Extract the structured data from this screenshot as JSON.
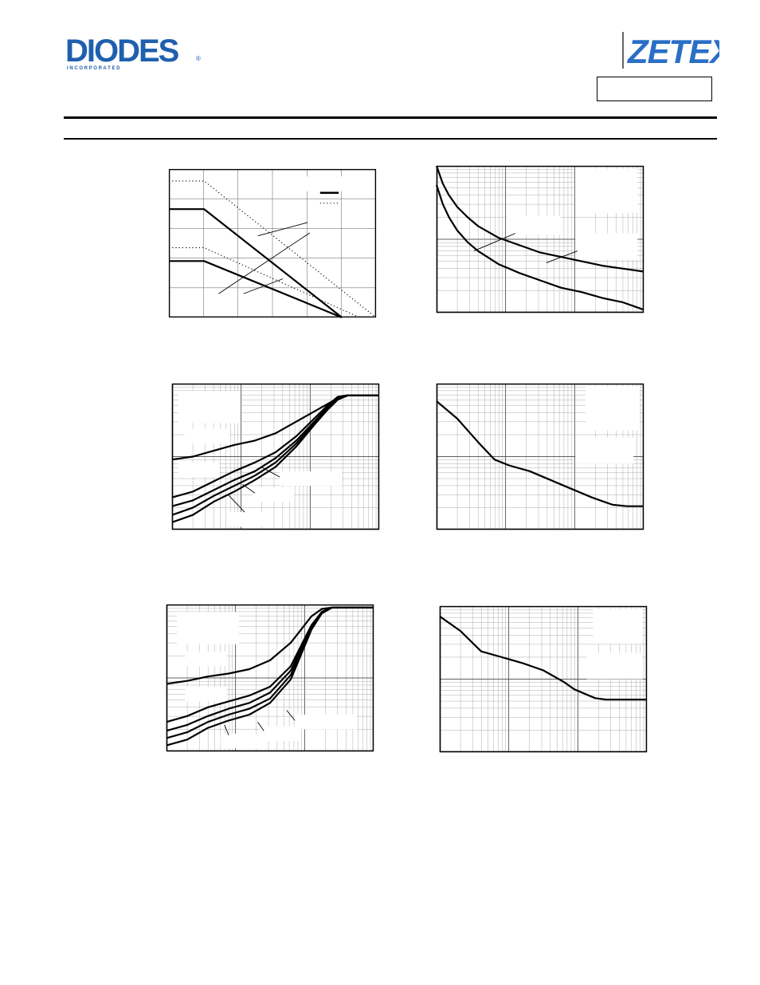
{
  "header": {
    "left_logo": {
      "name": "diodes-logo",
      "wordmark": "DIODES",
      "tagline": "I N C O R P O R A T E D",
      "registered": "®",
      "color": "#1f5fae"
    },
    "right_logo": {
      "name": "zetex-logo",
      "wordmark": "ZETEX",
      "color": "#2a6fc6"
    },
    "part_number_box": ""
  },
  "charts": [
    {
      "id": "chart-1",
      "type": "line",
      "grid": "linear",
      "legend_placement": "top-right",
      "series": [
        {
          "style": "dotted",
          "x": [
            0,
            0.17,
            1.0
          ],
          "y": [
            0.92,
            0.92,
            0.0
          ]
        },
        {
          "style": "solid",
          "x": [
            0,
            0.17,
            0.835
          ],
          "y": [
            0.73,
            0.73,
            0.0
          ]
        },
        {
          "style": "dotted",
          "x": [
            0,
            0.17,
            0.92
          ],
          "y": [
            0.47,
            0.47,
            0.0
          ]
        },
        {
          "style": "solid",
          "x": [
            0,
            0.17,
            0.835
          ],
          "y": [
            0.38,
            0.38,
            0.0
          ]
        }
      ]
    },
    {
      "id": "chart-2",
      "type": "line",
      "grid": "log",
      "series": [
        {
          "style": "solid",
          "x": [
            0.0,
            0.03,
            0.06,
            0.1,
            0.15,
            0.2,
            0.3,
            0.4,
            0.5,
            0.6,
            0.7,
            0.8,
            0.9,
            1.0
          ],
          "y": [
            1.0,
            0.88,
            0.8,
            0.72,
            0.65,
            0.59,
            0.51,
            0.46,
            0.41,
            0.38,
            0.35,
            0.32,
            0.3,
            0.28
          ]
        },
        {
          "style": "solid",
          "x": [
            0.0,
            0.03,
            0.06,
            0.1,
            0.15,
            0.2,
            0.3,
            0.4,
            0.5,
            0.6,
            0.7,
            0.8,
            0.9,
            1.0
          ],
          "y": [
            0.87,
            0.74,
            0.65,
            0.56,
            0.48,
            0.42,
            0.33,
            0.27,
            0.22,
            0.17,
            0.14,
            0.1,
            0.07,
            0.02
          ]
        }
      ]
    },
    {
      "id": "chart-3",
      "type": "line",
      "grid": "log",
      "series": [
        {
          "style": "solid",
          "x": [
            0,
            0.1,
            0.2,
            0.3,
            0.4,
            0.5,
            0.6,
            0.7,
            0.75,
            0.8,
            0.85,
            1.0
          ],
          "y": [
            0.48,
            0.5,
            0.54,
            0.58,
            0.61,
            0.66,
            0.74,
            0.82,
            0.86,
            0.9,
            0.92,
            0.92
          ]
        },
        {
          "style": "solid",
          "x": [
            0,
            0.1,
            0.2,
            0.3,
            0.4,
            0.5,
            0.6,
            0.7,
            0.75,
            0.8,
            0.85,
            1.0
          ],
          "y": [
            0.22,
            0.26,
            0.33,
            0.4,
            0.46,
            0.53,
            0.64,
            0.78,
            0.85,
            0.91,
            0.92,
            0.92
          ]
        },
        {
          "style": "solid",
          "x": [
            0,
            0.1,
            0.2,
            0.3,
            0.4,
            0.5,
            0.6,
            0.7,
            0.75,
            0.8,
            0.85,
            1.0
          ],
          "y": [
            0.16,
            0.2,
            0.27,
            0.34,
            0.4,
            0.49,
            0.61,
            0.76,
            0.84,
            0.9,
            0.92,
            0.92
          ]
        },
        {
          "style": "solid",
          "x": [
            0,
            0.1,
            0.2,
            0.3,
            0.4,
            0.5,
            0.6,
            0.7,
            0.75,
            0.8,
            0.85,
            1.0
          ],
          "y": [
            0.1,
            0.15,
            0.23,
            0.3,
            0.37,
            0.46,
            0.59,
            0.75,
            0.83,
            0.9,
            0.92,
            0.92
          ]
        },
        {
          "style": "solid",
          "x": [
            0,
            0.1,
            0.2,
            0.3,
            0.4,
            0.5,
            0.6,
            0.7,
            0.75,
            0.8,
            0.85,
            1.0
          ],
          "y": [
            0.05,
            0.1,
            0.19,
            0.26,
            0.34,
            0.43,
            0.57,
            0.74,
            0.82,
            0.89,
            0.92,
            0.92
          ]
        }
      ]
    },
    {
      "id": "chart-4",
      "type": "line",
      "grid": "log",
      "series": [
        {
          "style": "solid",
          "x": [
            0,
            0.1,
            0.2,
            0.28,
            0.35,
            0.45,
            0.55,
            0.65,
            0.75,
            0.85,
            0.92,
            1.0
          ],
          "y": [
            0.88,
            0.76,
            0.6,
            0.48,
            0.44,
            0.4,
            0.34,
            0.28,
            0.22,
            0.17,
            0.16,
            0.16
          ]
        }
      ]
    },
    {
      "id": "chart-5",
      "type": "line",
      "grid": "log",
      "series": [
        {
          "style": "solid",
          "x": [
            0,
            0.1,
            0.2,
            0.3,
            0.4,
            0.5,
            0.6,
            0.65,
            0.7,
            0.75,
            0.8,
            0.85,
            1.0
          ],
          "y": [
            0.46,
            0.48,
            0.51,
            0.53,
            0.56,
            0.62,
            0.74,
            0.83,
            0.92,
            0.97,
            0.98,
            0.98,
            0.98
          ]
        },
        {
          "style": "solid",
          "x": [
            0,
            0.1,
            0.2,
            0.3,
            0.4,
            0.5,
            0.6,
            0.65,
            0.7,
            0.75,
            0.8,
            0.85,
            1.0
          ],
          "y": [
            0.2,
            0.24,
            0.3,
            0.34,
            0.38,
            0.44,
            0.58,
            0.72,
            0.86,
            0.95,
            0.98,
            0.98,
            0.98
          ]
        },
        {
          "style": "solid",
          "x": [
            0,
            0.1,
            0.2,
            0.3,
            0.4,
            0.5,
            0.6,
            0.65,
            0.7,
            0.75,
            0.8,
            0.85,
            1.0
          ],
          "y": [
            0.14,
            0.18,
            0.24,
            0.29,
            0.33,
            0.4,
            0.55,
            0.7,
            0.85,
            0.95,
            0.98,
            0.98,
            0.98
          ]
        },
        {
          "style": "solid",
          "x": [
            0,
            0.1,
            0.2,
            0.3,
            0.4,
            0.5,
            0.6,
            0.65,
            0.7,
            0.75,
            0.8,
            0.85,
            1.0
          ],
          "y": [
            0.09,
            0.13,
            0.2,
            0.25,
            0.29,
            0.36,
            0.52,
            0.68,
            0.84,
            0.95,
            0.98,
            0.98,
            0.98
          ]
        },
        {
          "style": "solid",
          "x": [
            0,
            0.1,
            0.2,
            0.3,
            0.4,
            0.5,
            0.6,
            0.65,
            0.7,
            0.75,
            0.8,
            0.85,
            1.0
          ],
          "y": [
            0.04,
            0.08,
            0.16,
            0.21,
            0.25,
            0.33,
            0.49,
            0.66,
            0.83,
            0.94,
            0.98,
            0.98,
            0.98
          ]
        }
      ]
    },
    {
      "id": "chart-6",
      "type": "line",
      "grid": "log",
      "series": [
        {
          "style": "solid",
          "x": [
            0,
            0.1,
            0.2,
            0.3,
            0.4,
            0.5,
            0.6,
            0.65,
            0.7,
            0.75,
            0.8,
            0.9,
            1.0
          ],
          "y": [
            0.93,
            0.83,
            0.69,
            0.65,
            0.61,
            0.56,
            0.48,
            0.43,
            0.4,
            0.37,
            0.36,
            0.36,
            0.36
          ]
        }
      ]
    }
  ]
}
